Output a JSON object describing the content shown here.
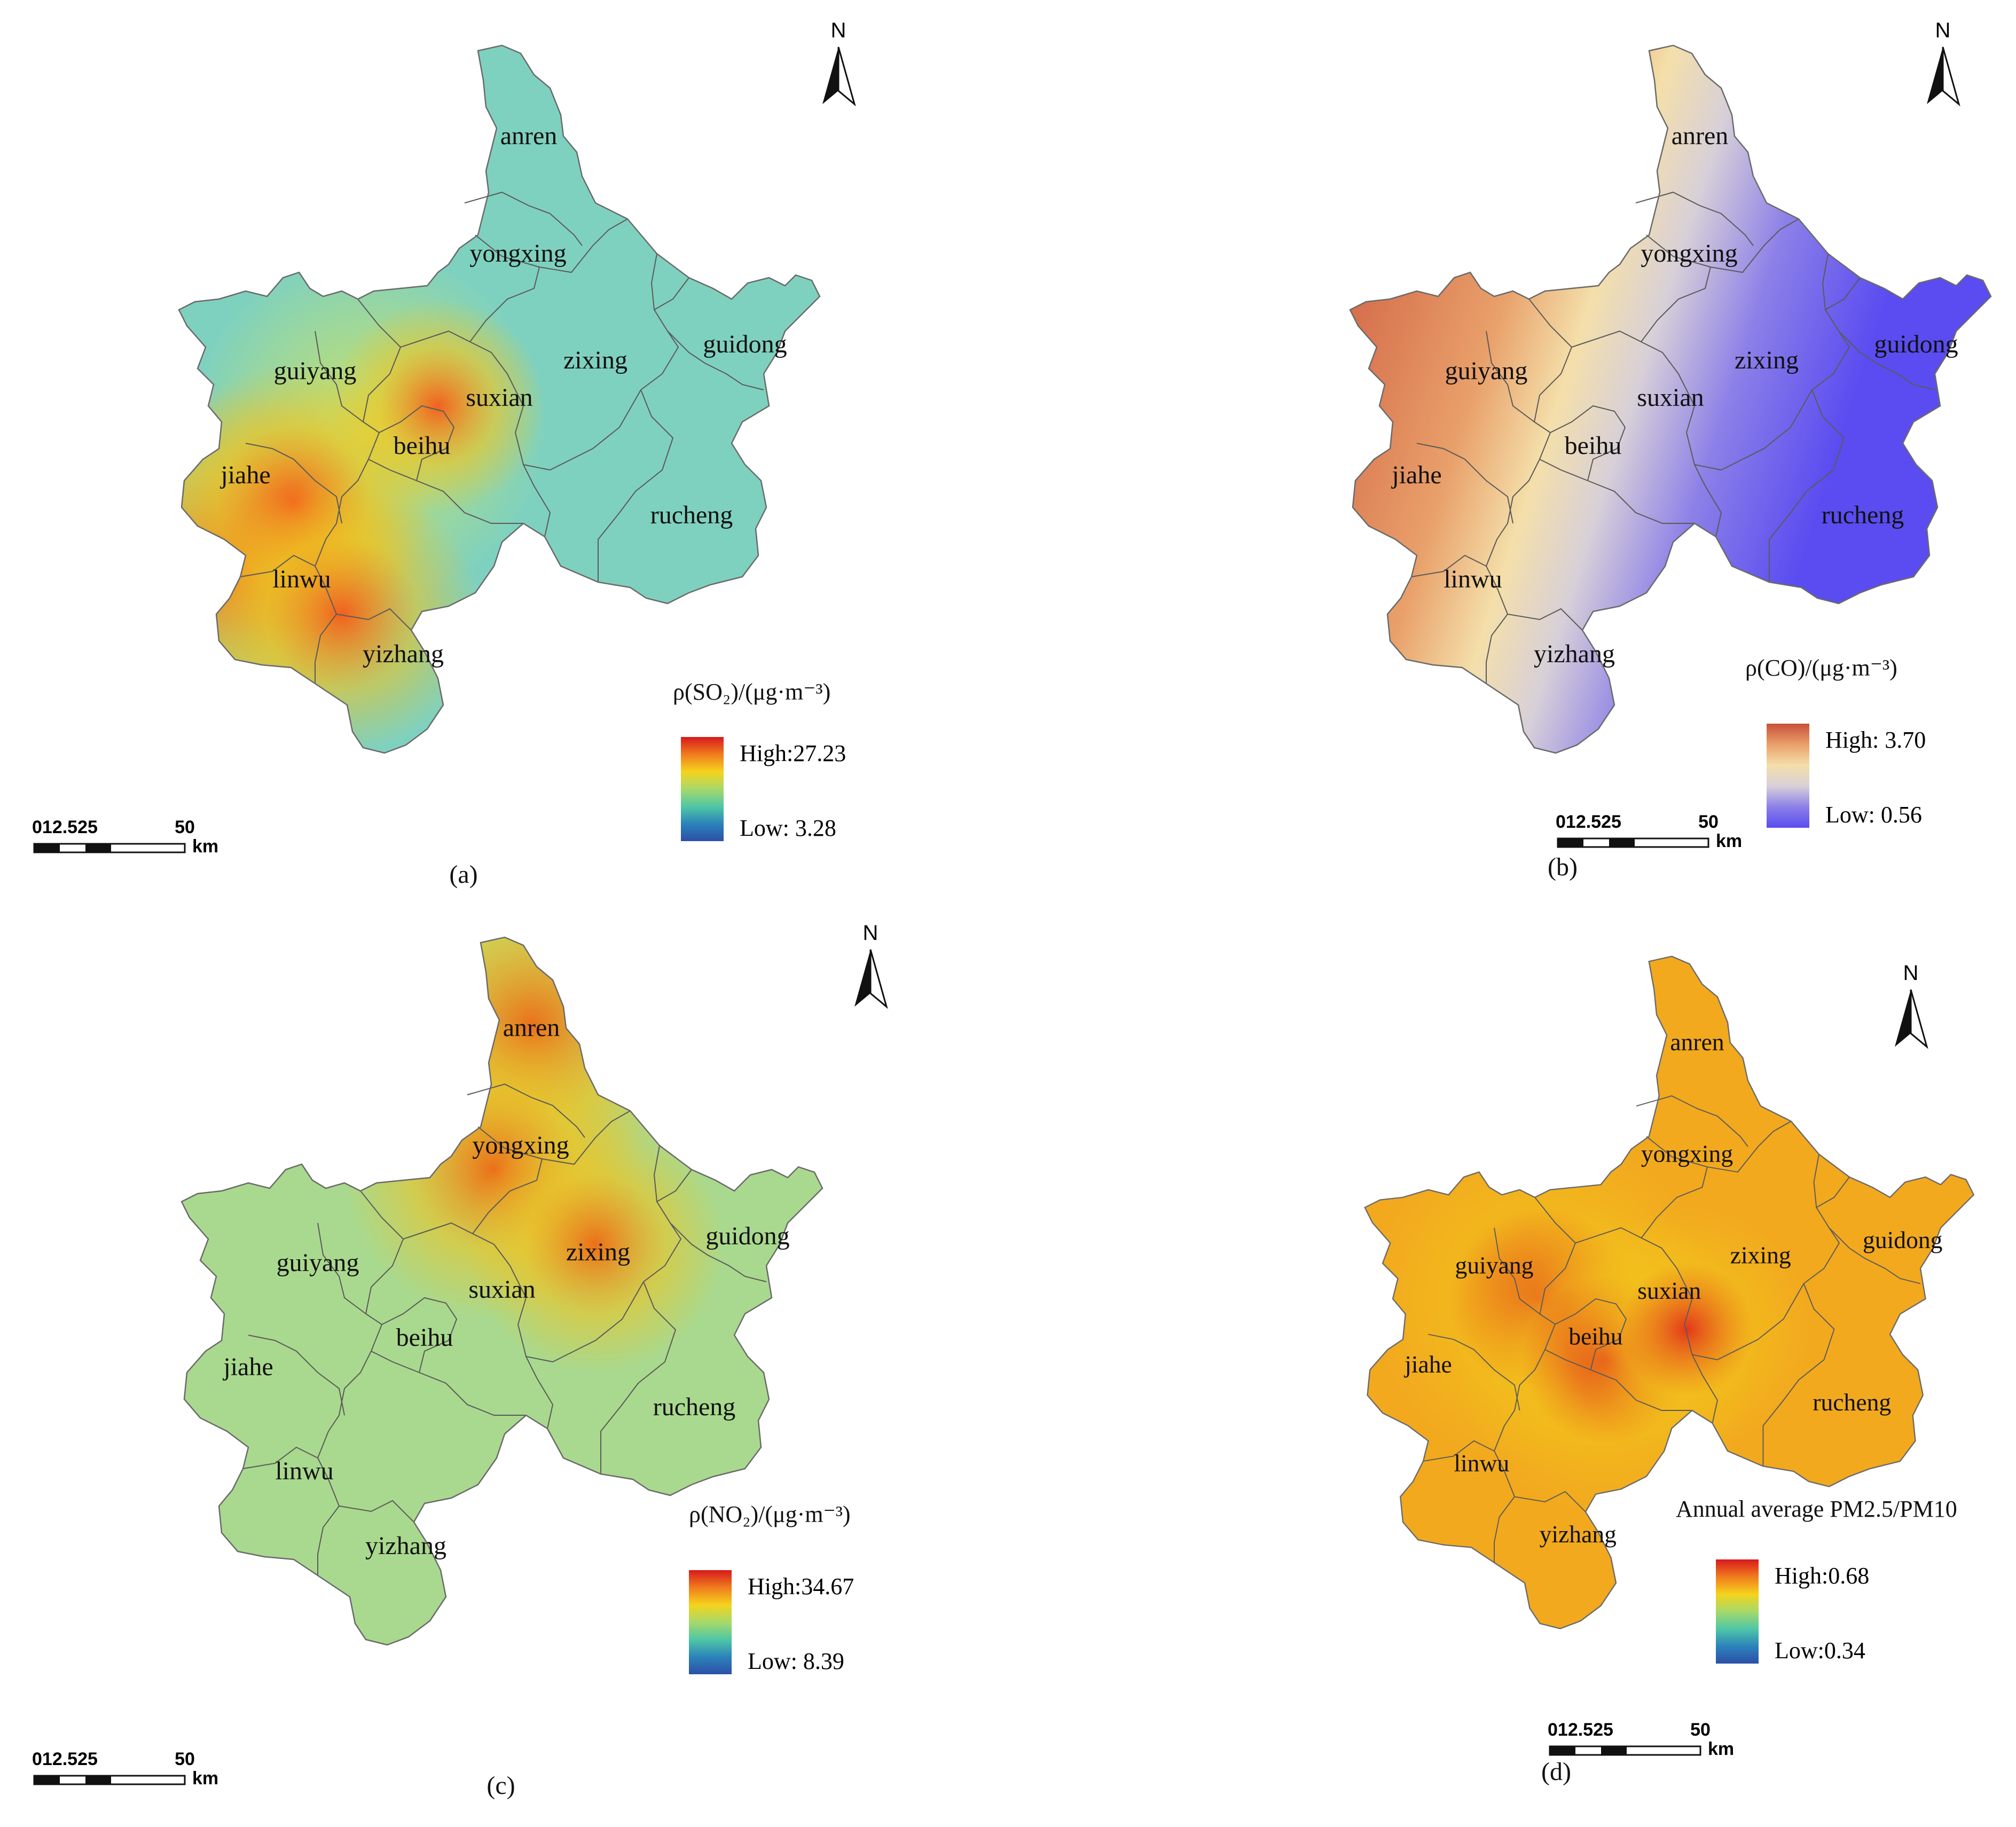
{
  "panels": [
    {
      "letter": "(a)",
      "legend_title_lines": [
        "ρ(SO₂)/(μg·m⁻³)"
      ],
      "legend_high": "High:27.23",
      "legend_low": "Low: 3.28",
      "ramp": "spectral",
      "base_color": "#7fd1bf",
      "hot_color": "#f45a1c",
      "north_label": "N",
      "scale_ticks": [
        "0",
        "12.5",
        "25",
        "50"
      ],
      "scale_unit": "km"
    },
    {
      "letter": "(b)",
      "legend_title_lines": [
        "ρ(CO)/(μg·m⁻³)"
      ],
      "legend_high": "High: 3.70",
      "legend_low": "Low: 0.56",
      "ramp": "redblue",
      "base_color": "#eadab0",
      "hot_color": "#cf5f47",
      "north_label": "N",
      "scale_ticks": [
        "0",
        "12.5",
        "25",
        "50"
      ],
      "scale_unit": "km"
    },
    {
      "letter": "(c)",
      "legend_title_lines": [
        "ρ(NO₂)/(μg·m⁻³)"
      ],
      "legend_high": "High:34.67",
      "legend_low": "Low: 8.39",
      "ramp": "spectral",
      "base_color": "#a9d98e",
      "hot_color": "#ee6a14",
      "north_label": "N",
      "scale_ticks": [
        "0",
        "12.5",
        "25",
        "50"
      ],
      "scale_unit": "km"
    },
    {
      "letter": "(d)",
      "legend_title_lines": [
        "Annual average PM2.5/PM10"
      ],
      "legend_high": "High:0.68",
      "legend_low": "Low:0.34",
      "ramp": "spectral",
      "base_color": "#f2a91e",
      "hot_color": "#e2301a",
      "north_label": "N",
      "scale_ticks": [
        "0",
        "12.5",
        "25",
        "50"
      ],
      "scale_unit": "km"
    }
  ],
  "counties": [
    "anren",
    "yongxing",
    "guiyang",
    "suxian",
    "zixing",
    "guidong",
    "beihu",
    "jiahe",
    "rucheng",
    "linwu",
    "yizhang"
  ],
  "colors": {
    "spectral": [
      "#d7191c",
      "#f07c1e",
      "#f5d31c",
      "#a6d96a",
      "#4fc7a6",
      "#2b83ba",
      "#2c4fa8"
    ],
    "redblue": [
      "#c9503a",
      "#e9a06a",
      "#f4dfaa",
      "#d8d0d8",
      "#8c80e8",
      "#5a4cf0"
    ]
  }
}
